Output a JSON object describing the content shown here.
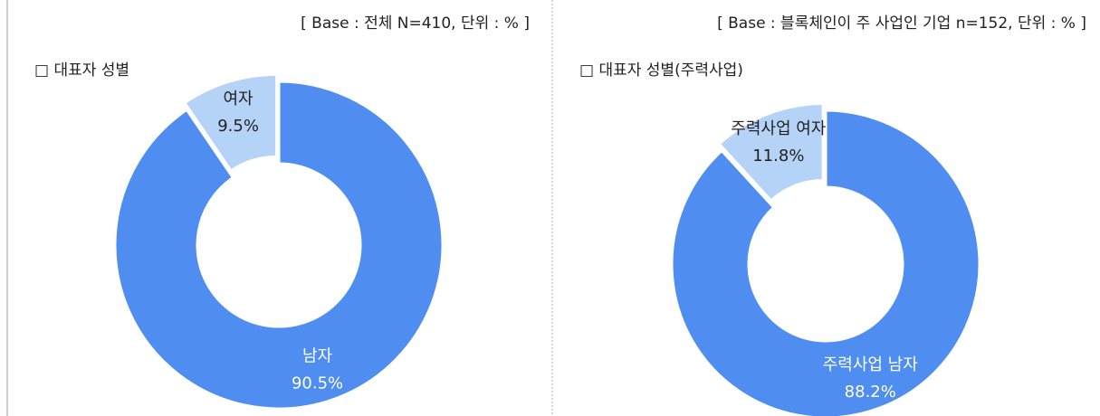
{
  "chart_data": [
    {
      "type": "pie",
      "donut": true,
      "note": "[ Base : 전체 N=410, 단위 : % ]",
      "title": "□ 대표자 성별",
      "categories": [
        "남자",
        "여자"
      ],
      "values": [
        90.5,
        9.5
      ],
      "value_labels": [
        "90.5%",
        "9.5%"
      ],
      "colors": [
        "#4f8ef0",
        "#b5d3f7"
      ],
      "exploded": [
        false,
        true
      ]
    },
    {
      "type": "pie",
      "donut": true,
      "note": "[ Base : 블록체인이 주 사업인 기업 n=152, 단위 : % ]",
      "title": "□ 대표자 성별(주력사업)",
      "categories": [
        "주력사업 남자",
        "주력사업 여자"
      ],
      "values": [
        88.2,
        11.8
      ],
      "value_labels": [
        "88.2%",
        "11.8%"
      ],
      "colors": [
        "#4f8ef0",
        "#b5d3f7"
      ],
      "exploded": [
        false,
        true
      ]
    }
  ]
}
